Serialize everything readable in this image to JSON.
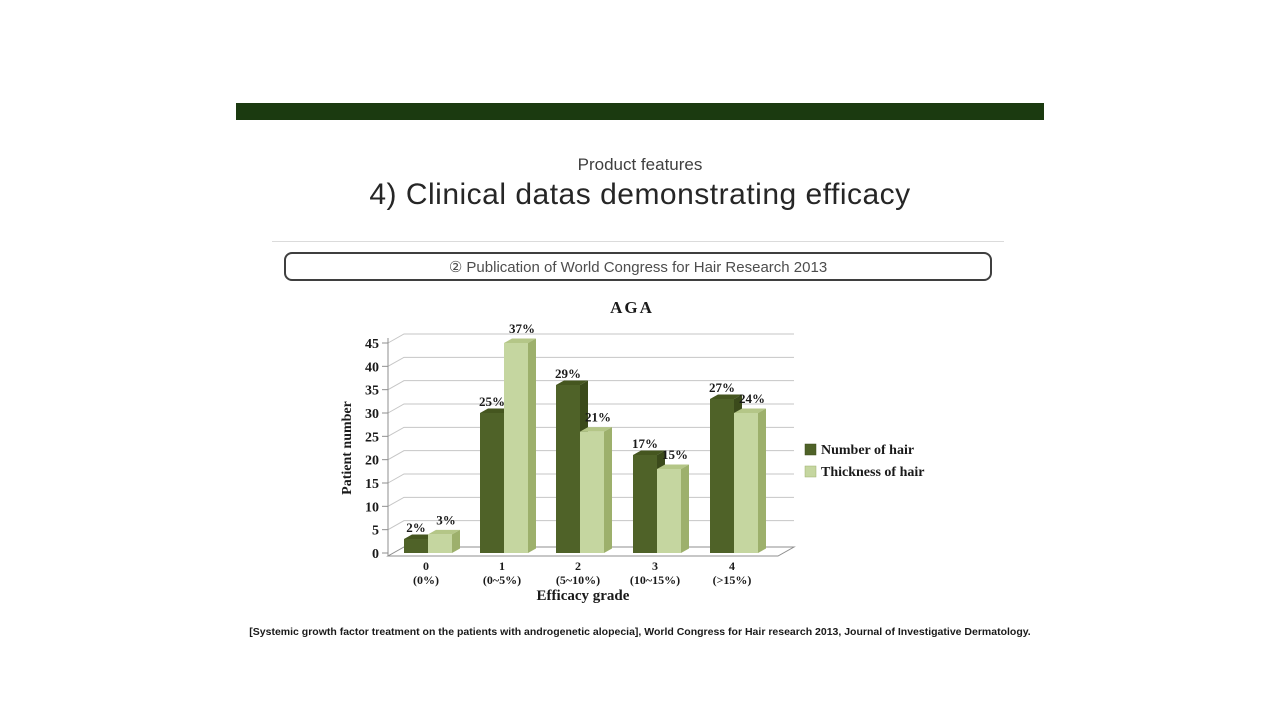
{
  "slide": {
    "subtitle": "Product features",
    "title": "4) Clinical datas demonstrating efficacy",
    "banner_color": "#1B3A10",
    "callout": "② Publication of World Congress for Hair Research 2013",
    "footnote": "[Systemic growth factor treatment on the patients with androgenetic alopecia], World Congress for Hair research 2013, Journal of Investigative Dermatology."
  },
  "chart_data": {
    "type": "bar",
    "style": "3d-clustered",
    "title": "AGA",
    "xlabel": "Efficacy grade",
    "ylabel": "Patient number",
    "ylim": [
      0,
      45
    ],
    "ytick_step": 5,
    "grid": true,
    "legend_position": "right",
    "categories": [
      "0",
      "1",
      "2",
      "3",
      "4"
    ],
    "category_sublabels": [
      "(0%)",
      "(0~5%)",
      "(5~10%)",
      "(10~15%)",
      "(>15%)"
    ],
    "series": [
      {
        "name": "Number of hair",
        "color": "#4F6228",
        "color_top": "#45561F",
        "color_side": "#3B4A1B",
        "values": [
          3,
          30,
          36,
          21,
          33
        ],
        "point_labels": [
          "2%",
          "25%",
          "29%",
          "17%",
          "27%"
        ]
      },
      {
        "name": "Thickness of hair",
        "color": "#C5D6A0",
        "color_top": "#B4C687",
        "color_side": "#9DB06C",
        "values": [
          4,
          45,
          26,
          18,
          30
        ],
        "point_labels": [
          "3%",
          "37%",
          "21%",
          "15%",
          "24%"
        ]
      }
    ],
    "axis_color": "#8F8F8F",
    "gridline_color": "#C6C6C6",
    "label_color": "#1A1A1A"
  }
}
